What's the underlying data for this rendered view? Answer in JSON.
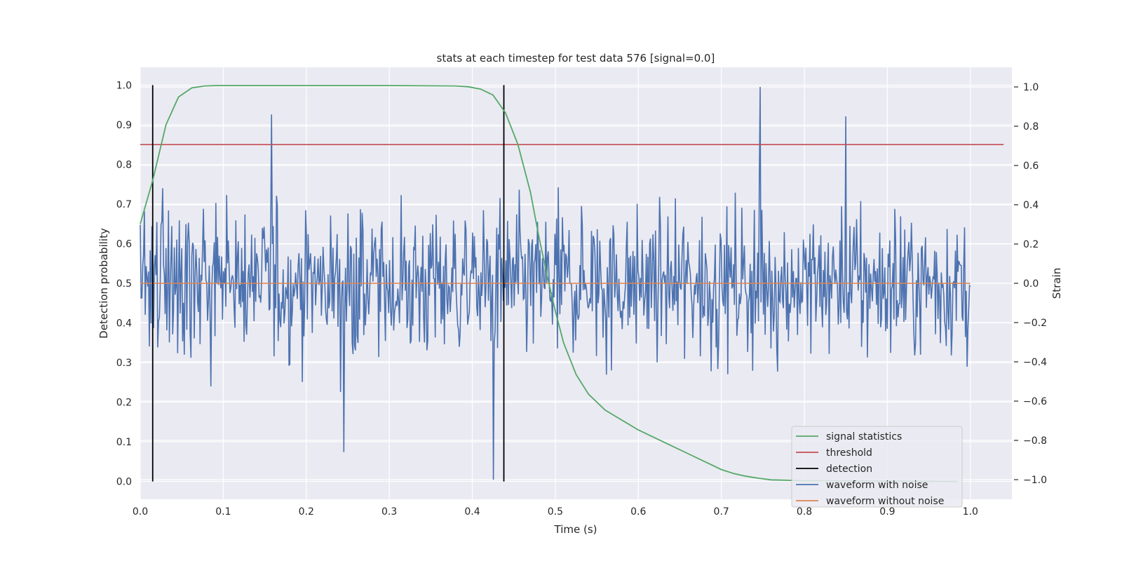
{
  "chart_data": {
    "type": "line",
    "title": "stats at each timestep for test data 576 [signal=0.0]",
    "xlabel": "Time (s)",
    "ylabel": "Detection probability",
    "y2label": "Strain",
    "xlim": [
      0.0,
      1.05
    ],
    "ylim": [
      -0.045,
      1.045
    ],
    "y2lim": [
      -1.1,
      1.1
    ],
    "xticks": [
      "0.0",
      "0.1",
      "0.2",
      "0.3",
      "0.4",
      "0.5",
      "0.6",
      "0.7",
      "0.8",
      "0.9",
      "1.0"
    ],
    "yticks": [
      "0.0",
      "0.1",
      "0.2",
      "0.3",
      "0.4",
      "0.5",
      "0.6",
      "0.7",
      "0.8",
      "0.9",
      "1.0"
    ],
    "y2ticks": [
      "−1.0",
      "−0.8",
      "−0.6",
      "−0.4",
      "−0.2",
      "0.0",
      "0.2",
      "0.4",
      "0.6",
      "0.8",
      "1.0"
    ],
    "grid": true,
    "legend_position": "lower-right",
    "series": [
      {
        "name": "signal statistics",
        "axis": "left",
        "color": "#55a868",
        "x": [
          0.0,
          0.015,
          0.031,
          0.046,
          0.062,
          0.077,
          0.092,
          0.108,
          0.2,
          0.3,
          0.38,
          0.395,
          0.41,
          0.425,
          0.44,
          0.455,
          0.47,
          0.48,
          0.49,
          0.5,
          0.51,
          0.525,
          0.54,
          0.56,
          0.58,
          0.6,
          0.62,
          0.64,
          0.66,
          0.68,
          0.7,
          0.715,
          0.73,
          0.745,
          0.76,
          0.8,
          0.9,
          0.985
        ],
        "y": [
          0.65,
          0.76,
          0.9,
          0.97,
          0.993,
          0.998,
          0.999,
          0.999,
          0.999,
          0.999,
          0.998,
          0.996,
          0.99,
          0.975,
          0.93,
          0.85,
          0.73,
          0.62,
          0.52,
          0.43,
          0.35,
          0.27,
          0.22,
          0.18,
          0.155,
          0.13,
          0.11,
          0.09,
          0.07,
          0.05,
          0.03,
          0.02,
          0.013,
          0.008,
          0.004,
          0.002,
          0.001,
          0.0
        ]
      },
      {
        "name": "threshold",
        "axis": "left",
        "color": "#c44e52",
        "x": [
          0.0,
          1.04
        ],
        "y": [
          0.85,
          0.85
        ]
      },
      {
        "name": "detection",
        "axis": "left",
        "color": "#000000",
        "type": "vlines",
        "x": [
          0.015,
          0.438
        ],
        "y": [
          0.0,
          1.0
        ]
      },
      {
        "name": "waveform with noise",
        "axis": "right",
        "color": "#4c72b0",
        "x_range": [
          0.0,
          1.0
        ],
        "n_points": 1000,
        "approx_amplitude": [
          -1.0,
          1.0
        ],
        "noise_seed": 576,
        "notable_peaks": [
          {
            "x": 0.158,
            "y": 0.86
          },
          {
            "x": 0.245,
            "y": -0.86
          },
          {
            "x": 0.425,
            "y": -1.0
          },
          {
            "x": 0.747,
            "y": 1.0
          },
          {
            "x": 0.85,
            "y": 0.85
          }
        ]
      },
      {
        "name": "waveform without noise",
        "axis": "right",
        "color": "#dd8452",
        "x": [
          0.0,
          1.0
        ],
        "y": [
          0.0,
          0.0
        ]
      }
    ]
  }
}
